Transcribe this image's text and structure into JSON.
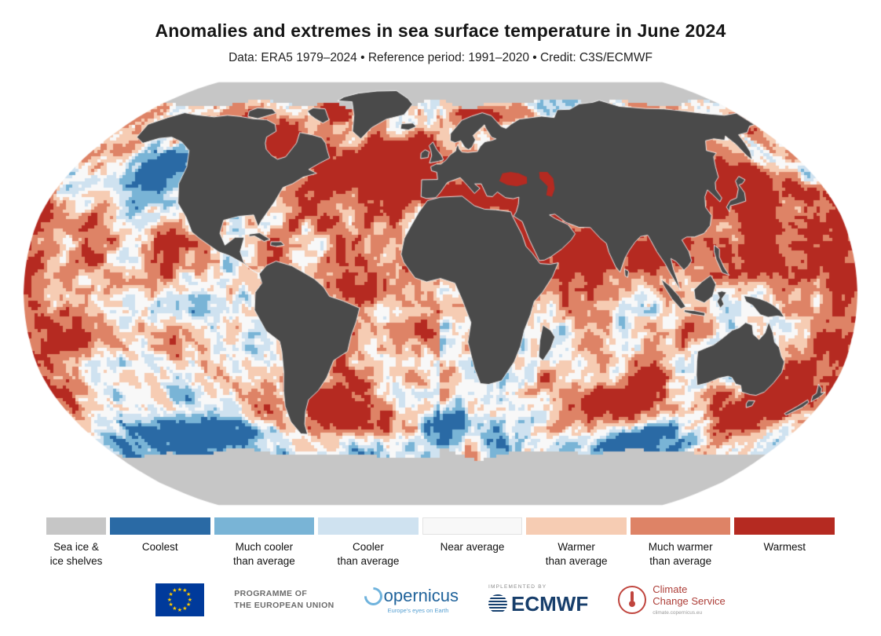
{
  "header": {
    "title": "Anomalies and extremes in sea surface temperature in June 2024",
    "subtitle": "Data: ERA5 1979–2024 • Reference period: 1991–2020 • Credit: C3S/ECMWF"
  },
  "chart_data": {
    "type": "heatmap",
    "title": "Anomalies and extremes in sea surface temperature in June 2024",
    "data_source": "ERA5 1979–2024",
    "reference_period": "1991–2020",
    "credit": "C3S/ECMWF",
    "projection": "Robinson world map",
    "variable": "Sea surface temperature anomaly category",
    "units": "categorical anomaly classes",
    "legend_position": "bottom",
    "categories": [
      "Sea ice & ice shelves",
      "Coolest",
      "Much cooler than average",
      "Cooler than average",
      "Near average",
      "Warmer than average",
      "Much warmer than average",
      "Warmest"
    ],
    "colors": [
      "#c6c6c6",
      "#2a6aa5",
      "#79b4d6",
      "#cfe2f0",
      "#f8f8f8",
      "#f6ccb3",
      "#de8366",
      "#b52a21"
    ],
    "notable_regions": [
      "North Atlantic and Mediterranean: much warmer than average to warmest",
      "Northeast Pacific / Gulf of Alaska: cooler to much cooler than average",
      "Equatorial eastern Pacific: near average to cooler than average",
      "Northwest Pacific east of Japan: warmest",
      "Arabian Sea, Red Sea and northwest Indian Ocean: much warmer than average to warmest",
      "South Atlantic and Tasman Sea mid-latitudes: warmest patches",
      "Southern Ocean: patchy mix of cooler and warmer anomalies",
      "Arctic and Antarctic high latitudes: sea ice & ice shelves (grey)"
    ]
  },
  "map": {
    "land_color": "#4a4a4a",
    "sea_ice_color": "#c6c6c6",
    "background": "#ffffff"
  },
  "legend": {
    "items": [
      {
        "l1": "Sea ice &",
        "l2": "ice shelves",
        "color": "#c6c6c6"
      },
      {
        "l1": "Coolest",
        "l2": "",
        "color": "#2a6aa5"
      },
      {
        "l1": "Much cooler",
        "l2": "than average",
        "color": "#79b4d6"
      },
      {
        "l1": "Cooler",
        "l2": "than average",
        "color": "#cfe2f0"
      },
      {
        "l1": "Near average",
        "l2": "",
        "color": "#f8f8f8"
      },
      {
        "l1": "Warmer",
        "l2": "than average",
        "color": "#f6ccb3"
      },
      {
        "l1": "Much warmer",
        "l2": "than average",
        "color": "#de8366"
      },
      {
        "l1": "Warmest",
        "l2": "",
        "color": "#b52a21"
      }
    ]
  },
  "footer": {
    "eu1": "PROGRAMME OF",
    "eu2": "THE EUROPEAN UNION",
    "copernicus": "opernicus",
    "copernicus_tagline": "Europe's eyes on Earth",
    "implemented_by": "IMPLEMENTED BY",
    "ecmwf": "ECMWF",
    "c3s1": "Climate",
    "c3s2": "Change Service",
    "c3s_url": "climate.copernicus.eu"
  }
}
